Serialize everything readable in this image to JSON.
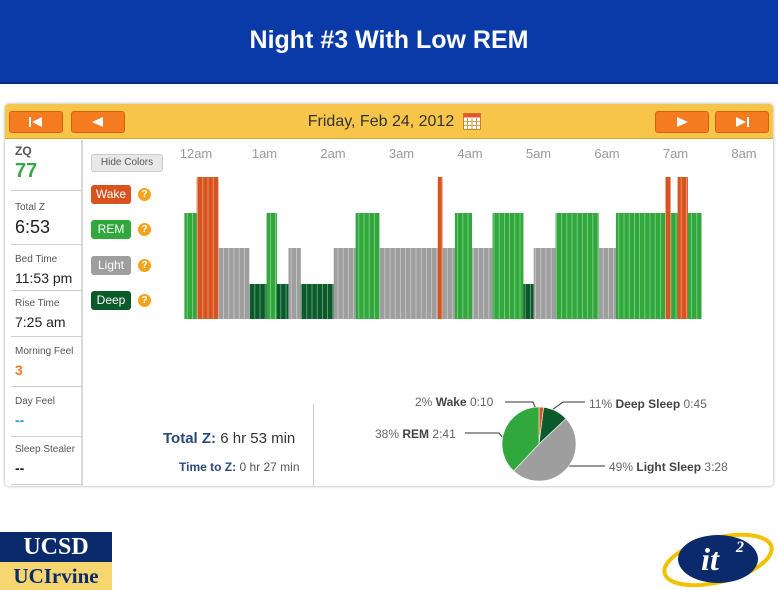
{
  "slide": {
    "title": "Night #3 With Low REM"
  },
  "nav": {
    "date": "Friday, Feb 24, 2012",
    "first_icon": "skip-back-icon",
    "prev_icon": "arrow-left-icon",
    "next_icon": "arrow-right-icon",
    "last_icon": "skip-forward-icon",
    "calendar_icon": "calendar-icon"
  },
  "sidebar": {
    "metrics": [
      {
        "label": "ZQ",
        "value": "77",
        "color": "#3aa64a"
      },
      {
        "label": "Total Z",
        "value": "6:53",
        "color": "#222222"
      },
      {
        "label": "Bed Time",
        "value": "11:53 pm",
        "color": "#222222"
      },
      {
        "label": "Rise Time",
        "value": "7:25 am",
        "color": "#222222"
      },
      {
        "label": "Morning Feel",
        "value": "3",
        "color": "#f47b20"
      },
      {
        "label": "Day Feel",
        "value": "--",
        "color": "#2a9fd0"
      },
      {
        "label": "Sleep Stealer",
        "value": "--",
        "color": "#222222"
      }
    ]
  },
  "legend": {
    "hide_colors": "Hide Colors",
    "help_glyph": "?",
    "stages": [
      {
        "label": "Wake",
        "color": "#d9531e"
      },
      {
        "label": "REM",
        "color": "#30a83c"
      },
      {
        "label": "Light",
        "color": "#9e9e9e"
      },
      {
        "label": "Deep",
        "color": "#0b5a2a"
      }
    ]
  },
  "timeline": {
    "hours": [
      "12am",
      "1am",
      "2am",
      "3am",
      "4am",
      "5am",
      "6am",
      "7am",
      "8am"
    ],
    "segments": [
      {
        "stage": "REM",
        "start": 0.0,
        "end": 0.18
      },
      {
        "stage": "Wake",
        "start": 0.18,
        "end": 0.5
      },
      {
        "stage": "Light",
        "start": 0.5,
        "end": 0.95
      },
      {
        "stage": "Deep",
        "start": 0.95,
        "end": 1.2
      },
      {
        "stage": "REM",
        "start": 1.2,
        "end": 1.35
      },
      {
        "stage": "Deep",
        "start": 1.35,
        "end": 1.52
      },
      {
        "stage": "Light",
        "start": 1.52,
        "end": 1.7
      },
      {
        "stage": "Deep",
        "start": 1.7,
        "end": 2.18
      },
      {
        "stage": "Light",
        "start": 2.18,
        "end": 2.5
      },
      {
        "stage": "REM",
        "start": 2.5,
        "end": 2.85
      },
      {
        "stage": "Light",
        "start": 2.85,
        "end": 3.7
      },
      {
        "stage": "Wake",
        "start": 3.7,
        "end": 3.77
      },
      {
        "stage": "Light",
        "start": 3.77,
        "end": 3.95
      },
      {
        "stage": "REM",
        "start": 3.95,
        "end": 4.2
      },
      {
        "stage": "Light",
        "start": 4.2,
        "end": 4.5
      },
      {
        "stage": "REM",
        "start": 4.5,
        "end": 4.95
      },
      {
        "stage": "Deep",
        "start": 4.95,
        "end": 5.1
      },
      {
        "stage": "Light",
        "start": 5.1,
        "end": 5.42
      },
      {
        "stage": "REM",
        "start": 5.42,
        "end": 6.05
      },
      {
        "stage": "Light",
        "start": 6.05,
        "end": 6.3
      },
      {
        "stage": "REM",
        "start": 6.3,
        "end": 7.02
      },
      {
        "stage": "Wake",
        "start": 7.02,
        "end": 7.1
      },
      {
        "stage": "REM",
        "start": 7.1,
        "end": 7.2
      },
      {
        "stage": "Wake",
        "start": 7.2,
        "end": 7.35
      },
      {
        "stage": "REM",
        "start": 7.35,
        "end": 7.55
      }
    ]
  },
  "summary": {
    "total_label": "Total Z:",
    "total_value": "6 hr 53 min",
    "ttz_label": "Time to Z:",
    "ttz_value": "0 hr 27 min"
  },
  "pie": {
    "slices": [
      {
        "stage": "Wake",
        "pct": 2,
        "pct_text": "2%",
        "name": "Wake",
        "duration": "0:10",
        "color": "#d9531e"
      },
      {
        "stage": "Deep",
        "pct": 11,
        "pct_text": "11%",
        "name": "Deep Sleep",
        "duration": "0:45",
        "color": "#0b5a2a"
      },
      {
        "stage": "Light",
        "pct": 49,
        "pct_text": "49%",
        "name": "Light Sleep",
        "duration": "3:28",
        "color": "#9e9e9e"
      },
      {
        "stage": "REM",
        "pct": 38,
        "pct_text": "38%",
        "name": "REM",
        "duration": "2:41",
        "color": "#30a83c"
      }
    ]
  },
  "logos": {
    "ucsd": "UCSD",
    "uci": "UCIrvine",
    "it2_mark": "it",
    "it2_sup": "2"
  }
}
